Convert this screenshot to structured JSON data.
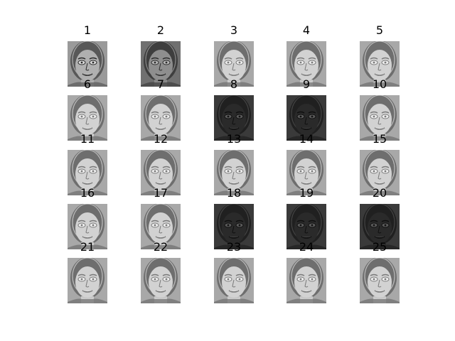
{
  "figure": {
    "panels": [
      {
        "title": "1",
        "tone": "normal"
      },
      {
        "title": "2",
        "tone": "mid"
      },
      {
        "title": "3",
        "tone": "light"
      },
      {
        "title": "4",
        "tone": "light"
      },
      {
        "title": "5",
        "tone": "light"
      },
      {
        "title": "6",
        "tone": "light"
      },
      {
        "title": "7",
        "tone": "light"
      },
      {
        "title": "8",
        "tone": "dark"
      },
      {
        "title": "9",
        "tone": "dark"
      },
      {
        "title": "10",
        "tone": "light"
      },
      {
        "title": "11",
        "tone": "light"
      },
      {
        "title": "12",
        "tone": "light"
      },
      {
        "title": "13",
        "tone": "light"
      },
      {
        "title": "14",
        "tone": "light"
      },
      {
        "title": "15",
        "tone": "light"
      },
      {
        "title": "16",
        "tone": "light"
      },
      {
        "title": "17",
        "tone": "light"
      },
      {
        "title": "18",
        "tone": "dark"
      },
      {
        "title": "19",
        "tone": "dark"
      },
      {
        "title": "20",
        "tone": "dark"
      },
      {
        "title": "21",
        "tone": "light"
      },
      {
        "title": "22",
        "tone": "light"
      },
      {
        "title": "23",
        "tone": "light"
      },
      {
        "title": "24",
        "tone": "light"
      },
      {
        "title": "25",
        "tone": "light"
      }
    ]
  },
  "palette": {
    "background": "#ffffff",
    "title_text": "#000000",
    "light_face": {
      "bg": "#a8a8a8",
      "hair": "#6e6e6e",
      "face": "#d2d2d2",
      "features": "#7a7a7a",
      "highlight": "#eeeeee"
    },
    "mid_face": {
      "bg": "#707070",
      "hair": "#3e3e3e",
      "face": "#8e8e8e",
      "features": "#2e2e2e",
      "highlight": "#b8b8b8"
    },
    "normal_face": {
      "bg": "#9a9a9a",
      "hair": "#585858",
      "face": "#b0b0b0",
      "features": "#2a2a2a",
      "highlight": "#dcdcdc"
    },
    "dark_face": {
      "bg": "#3a3a3a",
      "hair": "#202020",
      "face": "#2a2a2a",
      "features": "#101010",
      "highlight": "#5a5a5a"
    }
  }
}
